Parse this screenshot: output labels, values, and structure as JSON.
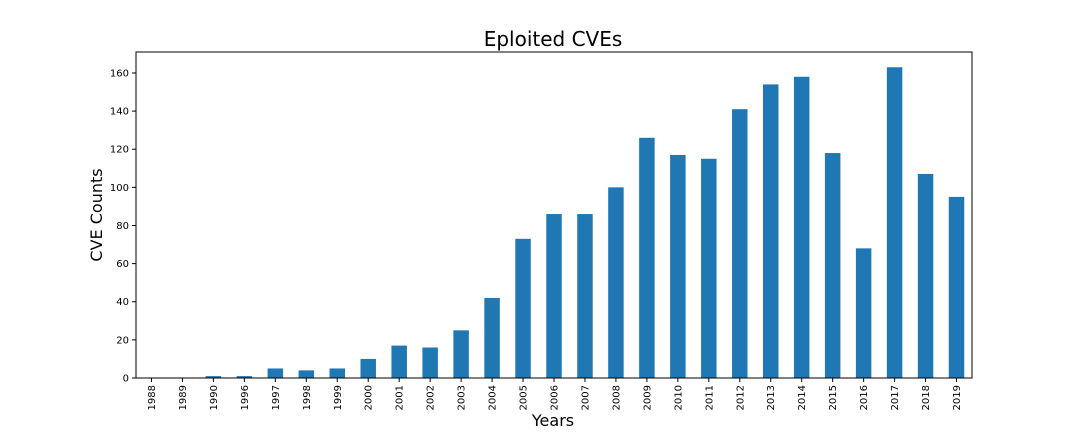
{
  "chart_data": {
    "type": "bar",
    "title": "Eploited CVEs",
    "xlabel": "Years",
    "ylabel": "CVE Counts",
    "categories": [
      "1988",
      "1989",
      "1990",
      "1996",
      "1997",
      "1998",
      "1999",
      "2000",
      "2001",
      "2002",
      "2003",
      "2004",
      "2005",
      "2006",
      "2007",
      "2008",
      "2009",
      "2010",
      "2011",
      "2012",
      "2013",
      "2014",
      "2015",
      "2016",
      "2017",
      "2018",
      "2019"
    ],
    "values": [
      0,
      0,
      1,
      1,
      5,
      4,
      5,
      10,
      17,
      16,
      25,
      42,
      73,
      86,
      86,
      100,
      126,
      117,
      115,
      141,
      154,
      158,
      118,
      68,
      163,
      107,
      95
    ],
    "ylim": [
      0,
      171
    ],
    "yticks": [
      0,
      20,
      40,
      60,
      80,
      100,
      120,
      140,
      160
    ],
    "grid": false,
    "bar_color": "#1f77b4"
  }
}
